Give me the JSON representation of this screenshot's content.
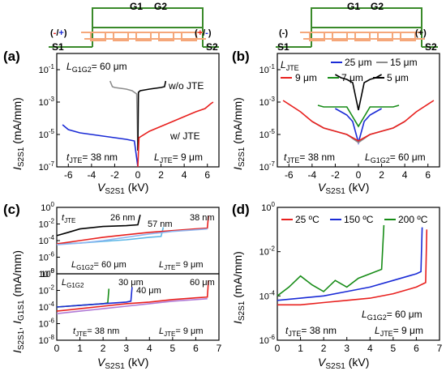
{
  "figure": {
    "panels": [
      {
        "id": "a",
        "label": "(a)"
      },
      {
        "id": "b",
        "label": "(b)"
      },
      {
        "id": "c",
        "label": "(c)"
      },
      {
        "id": "d",
        "label": "(d)"
      }
    ],
    "schematic_left": {
      "gate1": "G1",
      "gate2": "G2",
      "source1": "S1",
      "source2": "S2",
      "polarity_left_open": "(",
      "polarity_left_a": "-",
      "polarity_left_slash": "/",
      "polarity_left_b": "+",
      "polarity_left_close": ")",
      "polarity_right_open": "(",
      "polarity_right_a": "+",
      "polarity_right_slash": "/",
      "polarity_right_b": "-",
      "polarity_right_close": ")"
    },
    "schematic_right": {
      "gate1": "G1",
      "gate2": "G2",
      "source1": "S1",
      "source2": "S2",
      "polarity_left": "(-)",
      "polarity_right": "(+)"
    },
    "colors": {
      "red": "#e8201e",
      "blue": "#1a2bd6",
      "gray": "#8c8c8c",
      "green": "#178c17",
      "black": "#000000",
      "orange": "#f5a77a",
      "cyan": "#5bb7e6",
      "violet": "#b07ad6",
      "lightblue": "#8fb6f0",
      "schematic_green": "#3a8a2a"
    }
  },
  "chart_data": [
    {
      "panel": "a",
      "type": "line",
      "xlabel": "VS2S1 (kV)",
      "xlabel_main": "V",
      "xlabel_sub": "S2S1",
      "xlabel_unit": " (kV)",
      "ylabel": "IS2S1 (mA/mm)",
      "ylabel_main": "I",
      "ylabel_sub": "S2S1",
      "ylabel_unit": " (mA/mm)",
      "xlim": [
        -7,
        7
      ],
      "ylim_log10": [
        -7,
        0
      ],
      "xticks": [
        "-6",
        "-4",
        "-2",
        "0",
        "2",
        "4",
        "6"
      ],
      "ytick_exponents": [
        "-7",
        "-5",
        "-3",
        "-1"
      ],
      "annotations": {
        "lg_top_main": "L",
        "lg_top_sub": "G1G2",
        "lg_top_val": "= 60 μm",
        "tjte_main": "t",
        "tjte_sub": "JTE",
        "tjte_val": "= 38 nm",
        "ljte_main": "L",
        "ljte_sub": "JTE",
        "ljte_val": "= 9 μm",
        "wo_jte": "w/o JTE",
        "w_jte": "w/ JTE"
      },
      "series": [
        {
          "name": "w/o JTE",
          "color": "gray",
          "x": [
            -2.4,
            -2.2,
            -2,
            -1.5,
            -1,
            -0.5,
            -0.1,
            0
          ],
          "log_y": [
            -1.7,
            -2.05,
            -2.1,
            -2.15,
            -2.2,
            -2.3,
            -2.5,
            -6
          ]
        },
        {
          "name": "w/o JTE",
          "color": "black",
          "x": [
            0,
            0.05,
            0.2,
            0.6,
            1,
            1.5,
            2,
            2.3,
            2.4
          ],
          "log_y": [
            -6,
            -2.4,
            -2.3,
            -2.25,
            -2.2,
            -2.15,
            -2.1,
            -2.05,
            -1.7
          ]
        },
        {
          "name": "w/ JTE",
          "color": "blue",
          "x": [
            -6.5,
            -6,
            -5,
            -4,
            -3,
            -2,
            -1,
            -0.3,
            0
          ],
          "log_y": [
            -4.4,
            -4.7,
            -4.9,
            -5.0,
            -5.1,
            -5.2,
            -5.3,
            -5.4,
            -7
          ]
        },
        {
          "name": "w/ JTE",
          "color": "red",
          "x": [
            0,
            0.1,
            1,
            2,
            3,
            4,
            5,
            5.8,
            6.3,
            6.5
          ],
          "log_y": [
            -7,
            -5.2,
            -4.8,
            -4.5,
            -4.2,
            -3.9,
            -3.6,
            -3.4,
            -3.1,
            -3.0
          ]
        }
      ]
    },
    {
      "panel": "b",
      "type": "line",
      "xlabel": "VS2S1 (kV)",
      "xlabel_main": "V",
      "xlabel_sub": "S2S1",
      "xlabel_unit": " (kV)",
      "ylabel": "IS2S1 (mA/mm)",
      "ylabel_main": "I",
      "ylabel_sub": "S2S1",
      "ylabel_unit": " (mA/mm)",
      "xlim": [
        -7,
        7
      ],
      "ylim_log10": [
        -7,
        0
      ],
      "xticks": [
        "-6",
        "-4",
        "-2",
        "0",
        "2",
        "4",
        "6"
      ],
      "ytick_exponents": [
        "-7",
        "-5",
        "-3",
        "-1"
      ],
      "annotations": {
        "ljte_hdr_main": "L",
        "ljte_hdr_sub": "JTE",
        "tjte_main": "t",
        "tjte_sub": "JTE",
        "tjte_val": "= 38 nm",
        "lg_main": "L",
        "lg_sub": "G1G2",
        "lg_val": "= 60 μm"
      },
      "legend": [
        "25 μm",
        "15 μm",
        "9 μm",
        "7 μm",
        "5 μm"
      ],
      "series": [
        {
          "name": "25 μm",
          "color": "blue",
          "x": [
            -2,
            -1.5,
            -1,
            -0.5,
            0,
            0.5,
            1,
            1.5,
            2
          ],
          "log_y": [
            -3.4,
            -3.6,
            -3.8,
            -4.2,
            -5.5,
            -4.2,
            -3.8,
            -3.6,
            -3.4
          ]
        },
        {
          "name": "15 μm",
          "color": "gray",
          "x": [
            -4,
            -3,
            -2,
            -1,
            0,
            1,
            2,
            3,
            4
          ],
          "log_y": [
            -4.2,
            -4.6,
            -4.8,
            -5.0,
            -5.5,
            -5.0,
            -4.8,
            -4.6,
            -4.2
          ]
        },
        {
          "name": "9 μm",
          "color": "red",
          "x": [
            -6.5,
            -5,
            -4,
            -3,
            -2,
            -1,
            0,
            1,
            2,
            3,
            4,
            5,
            6.5
          ],
          "log_y": [
            -2.9,
            -3.6,
            -4.2,
            -4.6,
            -4.8,
            -5.0,
            -5.4,
            -5.0,
            -4.8,
            -4.6,
            -4.2,
            -3.6,
            -2.9
          ]
        },
        {
          "name": "7 μm",
          "color": "green",
          "x": [
            -3.5,
            -3,
            -2,
            -1,
            0,
            1,
            2,
            3,
            3.5
          ],
          "log_y": [
            -3.2,
            -3.3,
            -3.3,
            -3.3,
            -4.5,
            -3.3,
            -3.3,
            -3.3,
            -3.2
          ]
        },
        {
          "name": "5 μm",
          "color": "black",
          "x": [
            -2,
            -1.5,
            -1,
            -0.5,
            0,
            0.5,
            1,
            1.5,
            2
          ],
          "log_y": [
            -1.3,
            -1.5,
            -1.6,
            -1.8,
            -3.5,
            -1.8,
            -1.6,
            -1.5,
            -1.3
          ]
        }
      ]
    },
    {
      "panel": "c",
      "type": "line",
      "xlabel": "VS2S1 (kV)",
      "xlabel_main": "V",
      "xlabel_sub": "S2S1",
      "xlabel_unit": " (kV)",
      "ylabel": "IS2S1, IG1S1 (mA/mm)",
      "ylabel_main1": "I",
      "ylabel_sub1": "S2S1",
      "ylabel_sep": ", ",
      "ylabel_main2": "I",
      "ylabel_sub2": "G1S1",
      "ylabel_unit": " (mA/mm)",
      "xlim": [
        0,
        7
      ],
      "xticks": [
        "0",
        "1",
        "2",
        "3",
        "4",
        "5",
        "6",
        "7"
      ],
      "subplots": [
        {
          "ylim_log10": [
            -8,
            0
          ],
          "ytick_exponents": [
            "-8",
            "-6",
            "-4",
            "-2",
            "0"
          ],
          "annotations": {
            "hdr_main": "t",
            "hdr_sub": "JTE",
            "v1": "26 nm",
            "v2": "57 nm",
            "v3": "38 nm",
            "lg_main": "L",
            "lg_sub": "G1G2",
            "lg_val": "= 60 μm",
            "ljte_main": "L",
            "ljte_sub": "JTE",
            "ljte_val": "= 9 μm"
          },
          "series": [
            {
              "name": "26 nm",
              "color": "black",
              "x": [
                0,
                0.5,
                1,
                2,
                3,
                3.5,
                3.6
              ],
              "log_y": [
                -3.4,
                -3.0,
                -2.6,
                -2.3,
                -2.2,
                -2.1,
                -0.9
              ]
            },
            {
              "name": "57 nm",
              "color": "cyan",
              "x": [
                0,
                1,
                2,
                3,
                4,
                4.5,
                4.6
              ],
              "log_y": [
                -4.4,
                -4.3,
                -4.1,
                -3.9,
                -3.6,
                -3.5,
                -2.4
              ]
            },
            {
              "name": "38 nm",
              "color": "red",
              "x": [
                0,
                1,
                2,
                3,
                4,
                5,
                6,
                6.5,
                6.55
              ],
              "log_y": [
                -4.4,
                -4.0,
                -3.6,
                -3.3,
                -3.0,
                -2.8,
                -2.6,
                -2.5,
                -1.0
              ]
            },
            {
              "name": "38 nm",
              "color": "lightblue",
              "x": [
                0,
                1,
                2,
                3,
                4,
                5,
                6,
                6.5
              ],
              "log_y": [
                -4.5,
                -4.3,
                -4.0,
                -3.6,
                -3.2,
                -2.9,
                -2.7,
                -2.6
              ]
            }
          ]
        },
        {
          "ylim_log10": [
            -8,
            0
          ],
          "ytick_exponents": [
            "-8",
            "-6",
            "-4",
            "-2",
            "0"
          ],
          "annotations": {
            "hdr_main": "L",
            "hdr_sub": "G1G2",
            "v1": "30 μm",
            "v2": "40 μm",
            "v3": "60 μm",
            "tjte_main": "t",
            "tjte_sub": "JTE",
            "tjte_val": "= 38 nm",
            "ljte_main": "L",
            "ljte_sub": "JTE",
            "ljte_val": "= 9 μm"
          },
          "series": [
            {
              "name": "30 μm",
              "color": "green",
              "x": [
                0,
                1,
                2,
                2.2,
                2.25
              ],
              "log_y": [
                -4.0,
                -3.8,
                -3.6,
                -3.5,
                -1.8
              ]
            },
            {
              "name": "40 μm",
              "color": "blue",
              "x": [
                0,
                1,
                2,
                3,
                3.2,
                3.25
              ],
              "log_y": [
                -4.0,
                -3.8,
                -3.6,
                -3.4,
                -3.3,
                -1.6
              ]
            },
            {
              "name": "60 μm",
              "color": "red",
              "x": [
                0,
                1,
                2,
                3,
                4,
                5,
                6,
                6.5,
                6.55
              ],
              "log_y": [
                -4.5,
                -4.2,
                -3.9,
                -3.6,
                -3.4,
                -3.1,
                -2.9,
                -2.8,
                -0.8
              ]
            },
            {
              "name": "60 μm",
              "color": "violet",
              "x": [
                0,
                1,
                2,
                3,
                4,
                5,
                6,
                6.5
              ],
              "log_y": [
                -4.8,
                -4.5,
                -4.2,
                -3.9,
                -3.6,
                -3.3,
                -3.1,
                -3.0
              ]
            }
          ]
        }
      ]
    },
    {
      "panel": "d",
      "type": "line",
      "xlabel": "VS2S1 (kV)",
      "xlabel_main": "V",
      "xlabel_sub": "S2S1",
      "xlabel_unit": " (kV)",
      "ylabel": "IS2S1 (mA/mm)",
      "ylabel_main": "I",
      "ylabel_sub": "S2S1",
      "ylabel_unit": " (mA/mm)",
      "xlim": [
        0,
        7
      ],
      "xticks": [
        "0",
        "1",
        "2",
        "3",
        "4",
        "5",
        "6",
        "7"
      ],
      "ylim_log10": [
        -6,
        0
      ],
      "ytick_exponents": [
        "-6",
        "-4",
        "-2",
        "0"
      ],
      "legend": [
        "25 ºC",
        "150 ºC",
        "200 ºC"
      ],
      "annotations": {
        "lg_main": "L",
        "lg_sub": "G1G2",
        "lg_val": "= 60 μm",
        "tjte_main": "t",
        "tjte_sub": "JTE",
        "tjte_val": "= 38 nm",
        "ljte_main": "L",
        "ljte_sub": "JTE",
        "ljte_val": "= 9 μm"
      },
      "series": [
        {
          "name": "25 ºC",
          "color": "red",
          "x": [
            0,
            1,
            2,
            3,
            4,
            5,
            6,
            6.4,
            6.45
          ],
          "log_y": [
            -4.4,
            -4.4,
            -4.3,
            -4.2,
            -4.1,
            -3.9,
            -3.6,
            -3.4,
            -1.0
          ]
        },
        {
          "name": "150 ºC",
          "color": "blue",
          "x": [
            0,
            1,
            2,
            3,
            4,
            5,
            6,
            6.2,
            6.25
          ],
          "log_y": [
            -4.2,
            -4.1,
            -4.0,
            -3.8,
            -3.6,
            -3.3,
            -3.0,
            -2.9,
            -0.9
          ]
        },
        {
          "name": "200 ºC",
          "color": "green",
          "x": [
            0,
            0.5,
            1,
            1.5,
            2,
            2.5,
            3,
            3.5,
            4,
            4.5,
            4.6
          ],
          "log_y": [
            -4.0,
            -3.6,
            -3.1,
            -3.5,
            -3.8,
            -3.3,
            -3.6,
            -3.2,
            -3.0,
            -2.8,
            -0.8
          ]
        }
      ]
    }
  ]
}
